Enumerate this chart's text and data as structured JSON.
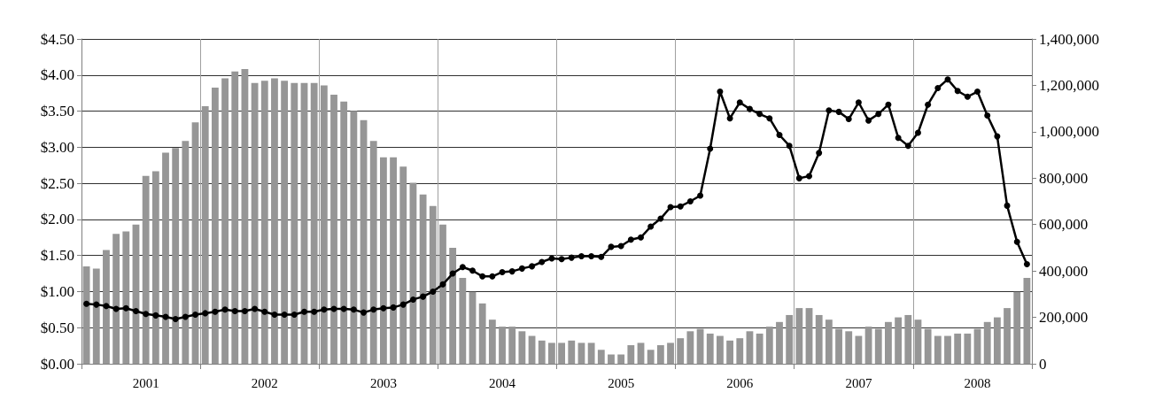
{
  "chart_data": {
    "type": "bar",
    "categories": [
      null,
      null,
      null,
      null,
      null,
      null,
      "2001",
      null,
      null,
      null,
      null,
      null,
      null,
      null,
      null,
      null,
      null,
      null,
      "2002",
      null,
      null,
      null,
      null,
      null,
      null,
      null,
      null,
      null,
      null,
      null,
      "2003",
      null,
      null,
      null,
      null,
      null,
      null,
      null,
      null,
      null,
      null,
      null,
      "2004",
      null,
      null,
      null,
      null,
      null,
      null,
      null,
      null,
      null,
      null,
      null,
      "2005",
      null,
      null,
      null,
      null,
      null,
      null,
      null,
      null,
      null,
      null,
      null,
      "2006",
      null,
      null,
      null,
      null,
      null,
      null,
      null,
      null,
      null,
      null,
      null,
      "2007",
      null,
      null,
      null,
      null,
      null,
      null,
      null,
      null,
      null,
      null,
      null,
      "2008",
      null,
      null,
      null,
      null,
      null
    ],
    "series": [
      {
        "axis": "y2",
        "color": "#969696",
        "values": [
          420000,
          410000,
          490000,
          560000,
          570000,
          600000,
          810000,
          830000,
          910000,
          930000,
          960000,
          1040000,
          1110000,
          1190000,
          1230000,
          1260000,
          1270000,
          1210000,
          1220000,
          1230000,
          1220000,
          1210000,
          1210000,
          1210000,
          1200000,
          1160000,
          1130000,
          1090000,
          1050000,
          960000,
          890000,
          890000,
          850000,
          780000,
          730000,
          680000,
          600000,
          500000,
          370000,
          310000,
          260000,
          190000,
          160000,
          160000,
          140000,
          120000,
          100000,
          90000,
          90000,
          100000,
          90000,
          90000,
          60000,
          40000,
          40000,
          80000,
          90000,
          60000,
          80000,
          90000,
          110000,
          140000,
          150000,
          130000,
          120000,
          100000,
          110000,
          140000,
          130000,
          160000,
          180000,
          210000,
          240000,
          240000,
          210000,
          190000,
          150000,
          140000,
          120000,
          160000,
          150000,
          180000,
          200000,
          210000,
          190000,
          150000,
          120000,
          120000,
          130000,
          130000,
          150000,
          180000,
          200000,
          240000,
          310000,
          370000
        ]
      },
      {
        "type": "line",
        "axis": "y",
        "color": "#000000",
        "values": [
          0.83,
          0.82,
          0.8,
          0.76,
          0.77,
          0.73,
          0.69,
          0.67,
          0.65,
          0.62,
          0.65,
          0.68,
          0.7,
          0.72,
          0.75,
          0.73,
          0.73,
          0.76,
          0.72,
          0.68,
          0.68,
          0.68,
          0.72,
          0.72,
          0.75,
          0.76,
          0.76,
          0.75,
          0.71,
          0.75,
          0.77,
          0.78,
          0.82,
          0.89,
          0.93,
          1.0,
          1.1,
          1.25,
          1.34,
          1.29,
          1.21,
          1.21,
          1.27,
          1.28,
          1.32,
          1.35,
          1.41,
          1.46,
          1.45,
          1.47,
          1.49,
          1.49,
          1.48,
          1.62,
          1.63,
          1.72,
          1.75,
          1.9,
          2.01,
          2.17,
          2.18,
          2.25,
          2.33,
          2.98,
          3.77,
          3.4,
          3.62,
          3.53,
          3.46,
          3.4,
          3.17,
          3.02,
          2.57,
          2.6,
          2.92,
          3.51,
          3.49,
          3.39,
          3.62,
          3.37,
          3.46,
          3.59,
          3.13,
          3.02,
          3.2,
          3.59,
          3.82,
          3.94,
          3.78,
          3.7,
          3.77,
          3.44,
          3.15,
          2.19,
          1.69,
          1.38
        ]
      }
    ],
    "ylim": [
      0,
      4.5
    ],
    "yticks": [
      {
        "value": 0,
        "label": "$0.00"
      },
      {
        "value": 0.5,
        "label": "$0.50"
      },
      {
        "value": 1,
        "label": "$1.00"
      },
      {
        "value": 1.5,
        "label": "$1.50"
      },
      {
        "value": 2,
        "label": "$2.00"
      },
      {
        "value": 2.5,
        "label": "$2.50"
      },
      {
        "value": 3,
        "label": "$3.00"
      },
      {
        "value": 3.5,
        "label": "$3.50"
      },
      {
        "value": 4,
        "label": "$4.00"
      },
      {
        "value": 4.5,
        "label": "$4.50"
      }
    ],
    "y2lim": [
      0,
      1400000
    ],
    "y2ticks": [
      0,
      {
        "value": 200000,
        "label": "200,000"
      },
      {
        "value": 400000,
        "label": "400,000"
      },
      {
        "value": 600000,
        "label": "600,000"
      },
      {
        "value": 800000,
        "label": "800,000"
      },
      {
        "value": 1000000,
        "label": "1,000,000"
      },
      {
        "value": 1200000,
        "label": "1,200,000"
      },
      {
        "value": 1400000,
        "label": "1,400,000"
      }
    ],
    "grid": true,
    "marker": "circle",
    "line_style": "solid"
  }
}
